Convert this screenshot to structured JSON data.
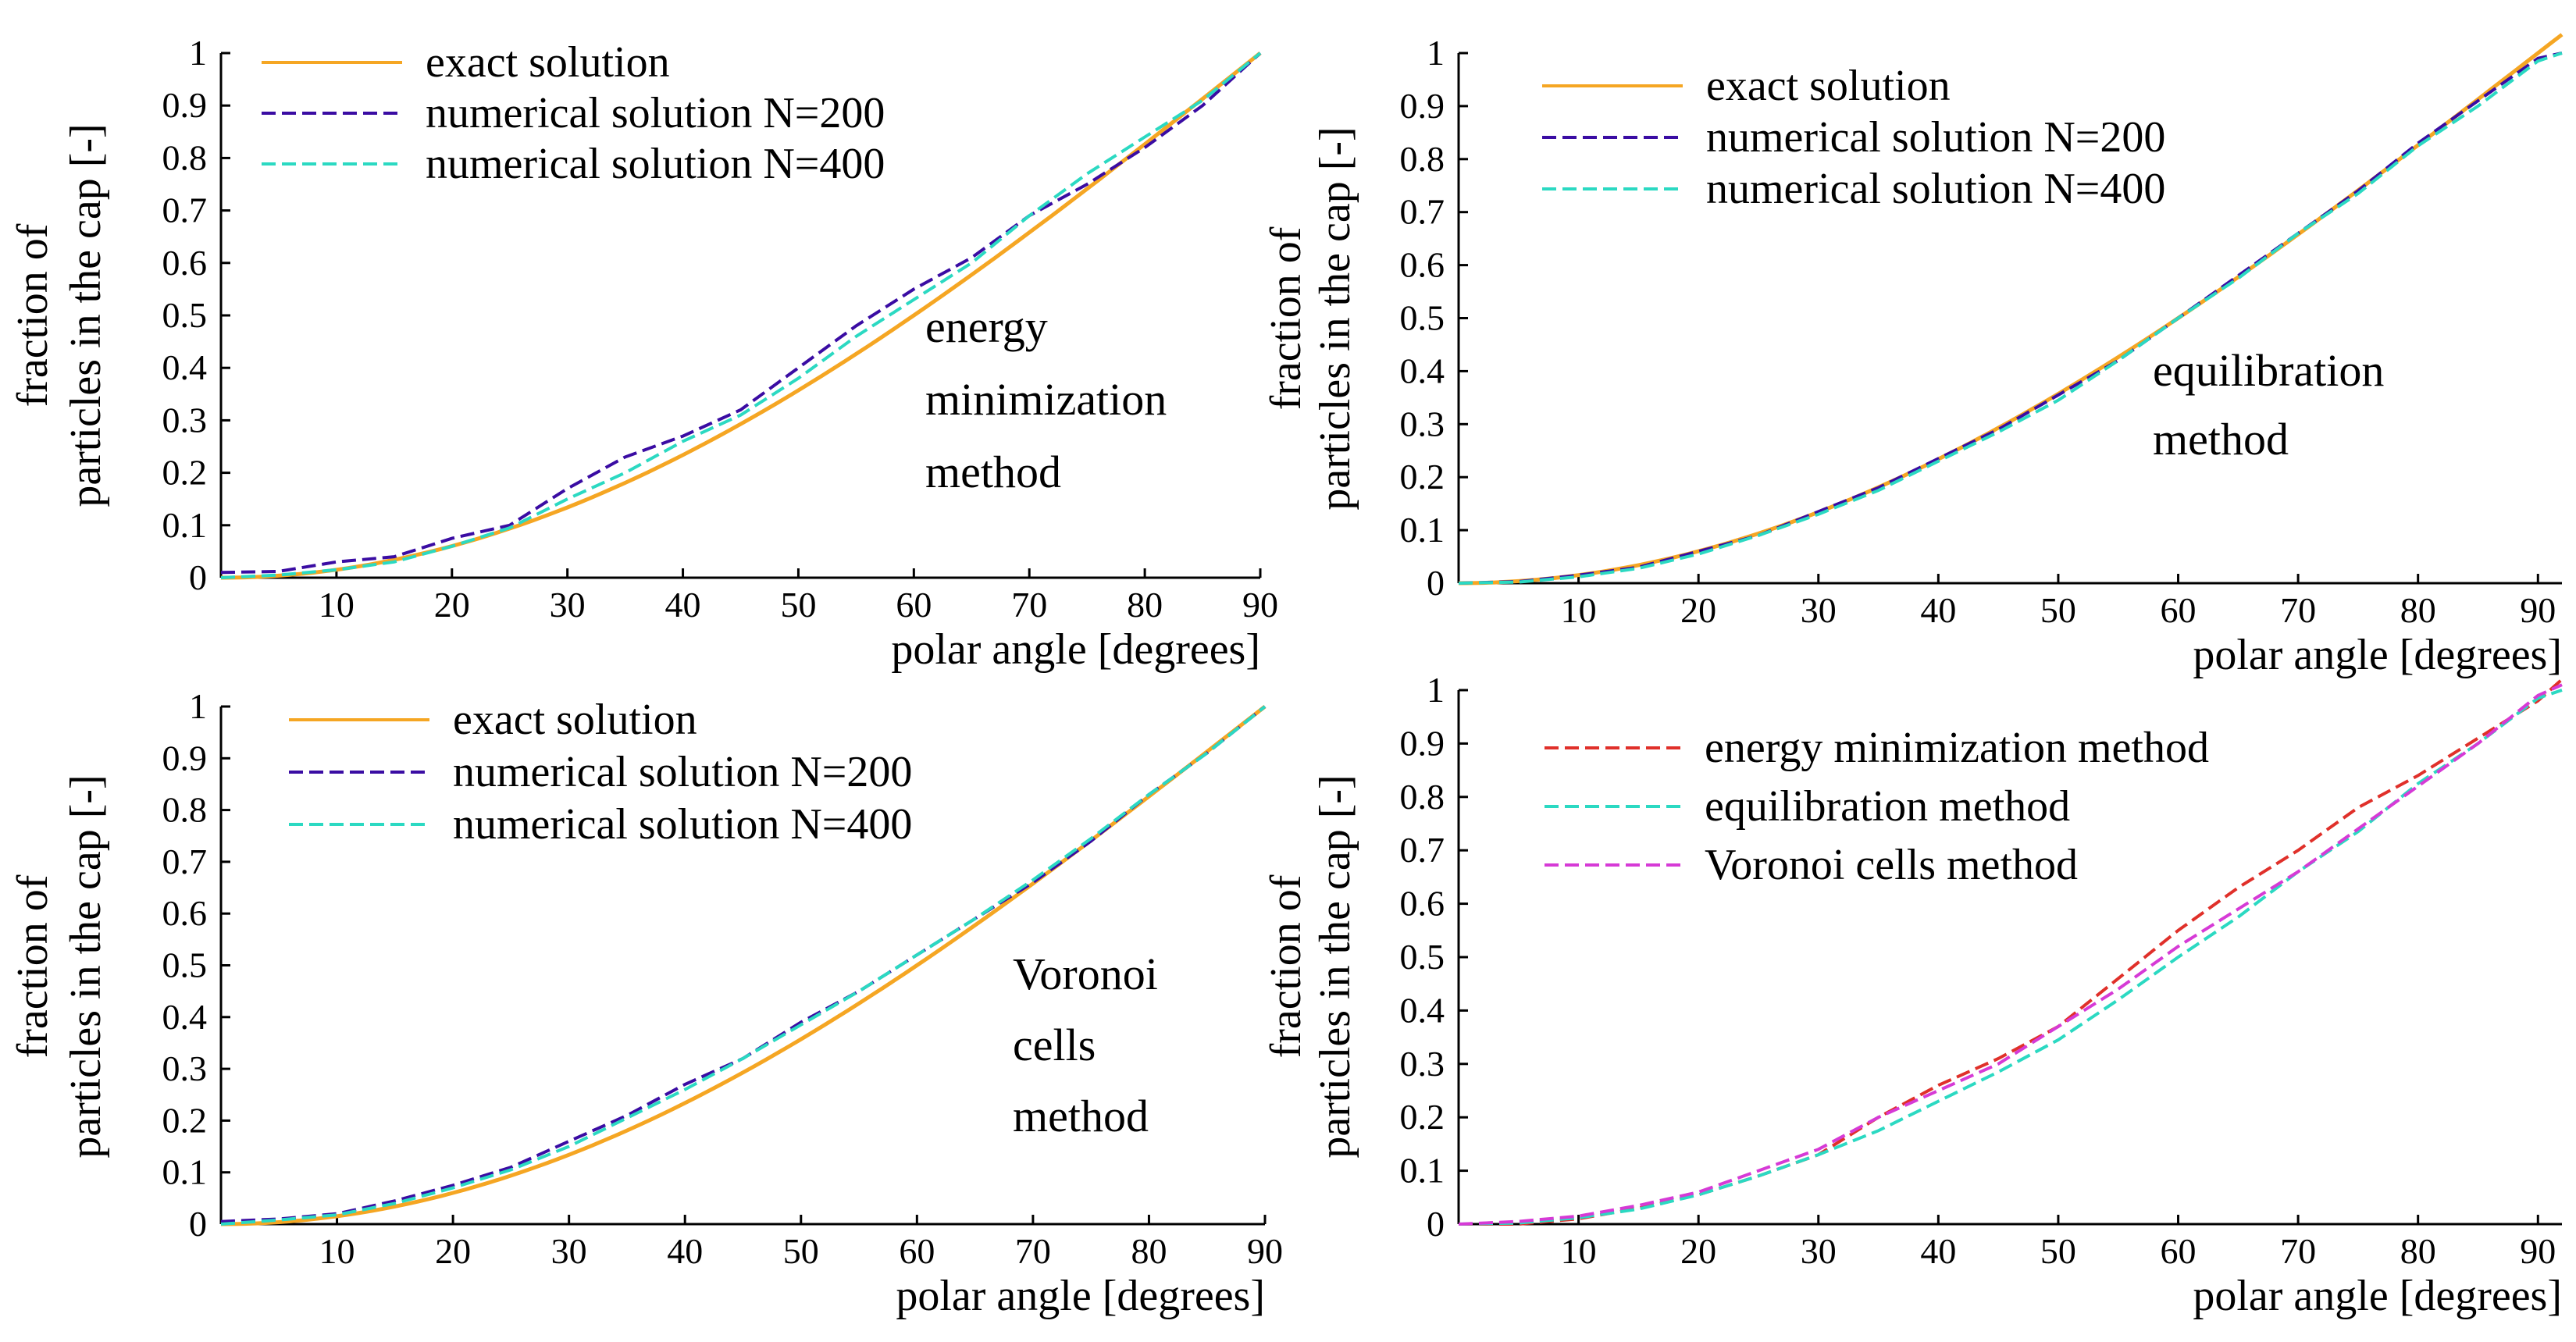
{
  "chart_data": [
    {
      "type": "line",
      "panel": "top-left",
      "title": "",
      "xlabel": "polar angle [degrees]",
      "ylabel_lines": [
        "fraction of",
        "particles in the cap [-]"
      ],
      "xlim": [
        0,
        90
      ],
      "ylim": [
        0,
        1
      ],
      "xticks": [
        10,
        20,
        30,
        40,
        50,
        60,
        70,
        80,
        90
      ],
      "yticks": [
        0,
        0.1,
        0.2,
        0.3,
        0.4,
        0.5,
        0.6,
        0.7,
        0.8,
        0.9,
        1
      ],
      "grid": false,
      "legend_position": "top-left",
      "annotation_lines": [
        "energy",
        "minimization",
        "method"
      ],
      "series": [
        {
          "name": "exact solution",
          "color": "#f5a623",
          "dash": "solid",
          "kind": "exact"
        },
        {
          "name": "numerical solution N=200",
          "color": "#3a0ca3",
          "dash": "dashed",
          "x": [
            0,
            5,
            10,
            15,
            20,
            25,
            30,
            35,
            40,
            45,
            50,
            55,
            60,
            65,
            70,
            75,
            80,
            85,
            90
          ],
          "y": [
            0.01,
            0.012,
            0.03,
            0.04,
            0.075,
            0.1,
            0.17,
            0.23,
            0.27,
            0.32,
            0.4,
            0.48,
            0.55,
            0.61,
            0.69,
            0.75,
            0.82,
            0.9,
            1.0
          ]
        },
        {
          "name": "numerical solution N=400",
          "color": "#2bd9c2",
          "dash": "dashed",
          "x": [
            0,
            5,
            10,
            15,
            20,
            25,
            30,
            35,
            40,
            45,
            50,
            55,
            60,
            65,
            70,
            75,
            80,
            85,
            90
          ],
          "y": [
            0.0,
            0.005,
            0.015,
            0.03,
            0.06,
            0.095,
            0.15,
            0.2,
            0.26,
            0.31,
            0.38,
            0.46,
            0.53,
            0.6,
            0.69,
            0.77,
            0.84,
            0.91,
            1.0
          ]
        }
      ]
    },
    {
      "type": "line",
      "panel": "top-right",
      "title": "",
      "xlabel": "polar angle [degrees]",
      "ylabel_lines": [
        "fraction of",
        "particles in the cap [-]"
      ],
      "xlim": [
        0,
        92
      ],
      "ylim": [
        0,
        1
      ],
      "xticks": [
        10,
        20,
        30,
        40,
        50,
        60,
        70,
        80,
        90
      ],
      "yticks": [
        0,
        0.1,
        0.2,
        0.3,
        0.4,
        0.5,
        0.6,
        0.7,
        0.8,
        0.9,
        1
      ],
      "grid": false,
      "legend_position": "top-left",
      "annotation_lines": [
        "equilibration",
        "method"
      ],
      "series": [
        {
          "name": "exact solution",
          "color": "#f5a623",
          "dash": "solid",
          "kind": "exact"
        },
        {
          "name": "numerical solution N=200",
          "color": "#3a0ca3",
          "dash": "dashed",
          "x": [
            0,
            5,
            10,
            15,
            20,
            25,
            30,
            35,
            40,
            45,
            50,
            55,
            60,
            65,
            70,
            75,
            80,
            85,
            90,
            92
          ],
          "y": [
            0.0,
            0.003,
            0.015,
            0.03,
            0.06,
            0.09,
            0.135,
            0.18,
            0.235,
            0.29,
            0.355,
            0.42,
            0.5,
            0.58,
            0.66,
            0.74,
            0.83,
            0.91,
            0.99,
            1.0
          ]
        },
        {
          "name": "numerical solution N=400",
          "color": "#2bd9c2",
          "dash": "dashed",
          "x": [
            0,
            5,
            10,
            15,
            20,
            25,
            30,
            35,
            40,
            45,
            50,
            55,
            60,
            65,
            70,
            75,
            80,
            85,
            90,
            92
          ],
          "y": [
            0.0,
            0.002,
            0.012,
            0.028,
            0.055,
            0.09,
            0.13,
            0.175,
            0.23,
            0.285,
            0.345,
            0.42,
            0.5,
            0.575,
            0.66,
            0.735,
            0.825,
            0.9,
            0.985,
            1.0
          ]
        }
      ]
    },
    {
      "type": "line",
      "panel": "bottom-left",
      "title": "",
      "xlabel": "polar angle [degrees]",
      "ylabel_lines": [
        "fraction of",
        "particles in the cap [-]"
      ],
      "xlim": [
        0,
        90
      ],
      "ylim": [
        0,
        1
      ],
      "xticks": [
        10,
        20,
        30,
        40,
        50,
        60,
        70,
        80,
        90
      ],
      "yticks": [
        0,
        0.1,
        0.2,
        0.3,
        0.4,
        0.5,
        0.6,
        0.7,
        0.8,
        0.9,
        1
      ],
      "grid": false,
      "legend_position": "top-left",
      "annotation_lines": [
        "Voronoi",
        "cells",
        "method"
      ],
      "series": [
        {
          "name": "exact solution",
          "color": "#f5a623",
          "dash": "solid",
          "kind": "exact"
        },
        {
          "name": "numerical solution N=200",
          "color": "#3a0ca3",
          "dash": "dashed",
          "x": [
            0,
            5,
            10,
            15,
            20,
            25,
            30,
            35,
            40,
            45,
            50,
            55,
            60,
            65,
            70,
            75,
            80,
            85,
            90
          ],
          "y": [
            0.005,
            0.01,
            0.02,
            0.045,
            0.075,
            0.11,
            0.16,
            0.21,
            0.27,
            0.32,
            0.39,
            0.45,
            0.52,
            0.59,
            0.66,
            0.74,
            0.83,
            0.91,
            1.0
          ]
        },
        {
          "name": "numerical solution N=400",
          "color": "#2bd9c2",
          "dash": "dashed",
          "x": [
            0,
            5,
            10,
            15,
            20,
            25,
            30,
            35,
            40,
            45,
            50,
            55,
            60,
            65,
            70,
            75,
            80,
            85,
            90
          ],
          "y": [
            0.0,
            0.008,
            0.018,
            0.04,
            0.07,
            0.105,
            0.15,
            0.205,
            0.26,
            0.32,
            0.385,
            0.45,
            0.52,
            0.59,
            0.665,
            0.745,
            0.83,
            0.91,
            1.0
          ]
        }
      ]
    },
    {
      "type": "line",
      "panel": "bottom-right",
      "title": "",
      "xlabel": "polar angle [degrees]",
      "ylabel_lines": [
        "fraction of",
        "particles in the cap [-]"
      ],
      "xlim": [
        0,
        92
      ],
      "ylim": [
        0,
        1
      ],
      "xticks": [
        10,
        20,
        30,
        40,
        50,
        60,
        70,
        80,
        90
      ],
      "yticks": [
        0,
        0.1,
        0.2,
        0.3,
        0.4,
        0.5,
        0.6,
        0.7,
        0.8,
        0.9,
        1
      ],
      "grid": false,
      "legend_position": "top-left",
      "annotation_lines": [],
      "series": [
        {
          "name": "energy minimization method",
          "color": "#e0302a",
          "dash": "dashed",
          "x": [
            0,
            5,
            10,
            15,
            20,
            25,
            30,
            35,
            40,
            45,
            50,
            55,
            60,
            65,
            70,
            75,
            80,
            85,
            90,
            92
          ],
          "y": [
            0.0,
            0.0,
            0.01,
            0.03,
            0.055,
            0.09,
            0.13,
            0.2,
            0.26,
            0.31,
            0.37,
            0.46,
            0.55,
            0.63,
            0.7,
            0.78,
            0.84,
            0.91,
            0.98,
            1.02
          ]
        },
        {
          "name": "equilibration method",
          "color": "#2bd9c2",
          "dash": "dashed",
          "x": [
            0,
            5,
            10,
            15,
            20,
            25,
            30,
            35,
            40,
            45,
            50,
            55,
            60,
            65,
            70,
            75,
            80,
            85,
            90,
            92
          ],
          "y": [
            0.0,
            0.002,
            0.012,
            0.028,
            0.055,
            0.09,
            0.13,
            0.175,
            0.23,
            0.285,
            0.345,
            0.42,
            0.5,
            0.575,
            0.66,
            0.735,
            0.825,
            0.9,
            0.985,
            1.0
          ]
        },
        {
          "name": "Voronoi cells method",
          "color": "#d63ad6",
          "dash": "dashed",
          "x": [
            0,
            5,
            10,
            15,
            20,
            25,
            30,
            35,
            40,
            45,
            50,
            55,
            60,
            65,
            70,
            75,
            80,
            85,
            90,
            92
          ],
          "y": [
            0.0,
            0.005,
            0.015,
            0.035,
            0.06,
            0.1,
            0.14,
            0.2,
            0.25,
            0.3,
            0.37,
            0.44,
            0.52,
            0.59,
            0.66,
            0.74,
            0.82,
            0.9,
            0.99,
            1.01
          ]
        }
      ]
    }
  ]
}
